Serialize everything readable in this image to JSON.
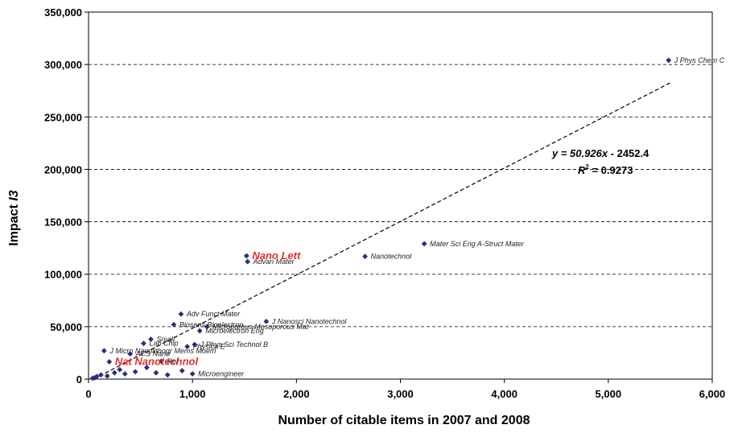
{
  "chart_data": {
    "type": "scatter",
    "xlabel": "Number of citable items in 2007 and 2008",
    "ylabel_prefix": "Impact ",
    "ylabel_var": "I3",
    "xlim": [
      0,
      6000
    ],
    "ylim": [
      0,
      350000
    ],
    "x_ticks": [
      "0",
      "1,000",
      "2,000",
      "3,000",
      "4,000",
      "5,000",
      "6,000"
    ],
    "y_ticks": [
      "0",
      "50,000",
      "100,000",
      "150,000",
      "200,000",
      "250,000",
      "300,000",
      "350,000"
    ],
    "grid": "horizontal dashed",
    "marker_color": "#2b2f7a",
    "highlight_color": "#e03030",
    "trendline": {
      "slope": 50.926,
      "intercept": -2452.4,
      "x_range": [
        50,
        5600
      ]
    },
    "equation": {
      "y_part": "y = 50.926",
      "x_part": "x",
      "rest": " - 2452.4",
      "r2_prefix": "R",
      "r2_sup": "2",
      "r2_rest": " = 0.9273"
    },
    "points": [
      {
        "x": 5580,
        "y": 304000,
        "label": "J Phys Chem C",
        "highlight": false
      },
      {
        "x": 3230,
        "y": 129000,
        "label": "Mater Sci Eng A-Struct Mater",
        "highlight": false
      },
      {
        "x": 2660,
        "y": 117000,
        "label": "Nanotechnol",
        "highlight": false
      },
      {
        "x": 1520,
        "y": 117500,
        "label": "Nano Lett",
        "highlight": true
      },
      {
        "x": 1530,
        "y": 112000,
        "label": "Advan Mater",
        "highlight": false
      },
      {
        "x": 890,
        "y": 62000,
        "label": "Adv Funct Mater",
        "highlight": false
      },
      {
        "x": 1710,
        "y": 55000,
        "label": "J Nanosci Nanotechnol",
        "highlight": false
      },
      {
        "x": 820,
        "y": 52000,
        "label": "Biosens Bioelectron",
        "highlight": false
      },
      {
        "x": 1140,
        "y": 50000,
        "label": "Microporous Mesoporous Mat",
        "highlight": false
      },
      {
        "x": 1070,
        "y": 46000,
        "label": "Microelectron Eng",
        "highlight": false
      },
      {
        "x": 600,
        "y": 38000,
        "label": "Small",
        "highlight": false
      },
      {
        "x": 530,
        "y": 34000,
        "label": "Lab Chip",
        "highlight": false
      },
      {
        "x": 1020,
        "y": 33000,
        "label": "J Phys Sci Technol B",
        "highlight": false
      },
      {
        "x": 950,
        "y": 31000,
        "label": "Physica E",
        "highlight": false
      },
      {
        "x": 150,
        "y": 27000,
        "label": "J Micro Nanolithogr Mems Moem",
        "highlight": false
      },
      {
        "x": 400,
        "y": 24000,
        "label": "ACS Nano",
        "highlight": false
      },
      {
        "x": 200,
        "y": 16500,
        "label": "Nat Nanotechnol",
        "highlight": true
      },
      {
        "x": 700,
        "y": 17000,
        "label": "Rel",
        "highlight": false
      },
      {
        "x": 560,
        "y": 11000,
        "label": "",
        "highlight": false
      },
      {
        "x": 300,
        "y": 9000,
        "label": "",
        "highlight": false
      },
      {
        "x": 250,
        "y": 6000,
        "label": "",
        "highlight": false
      },
      {
        "x": 120,
        "y": 4000,
        "label": "",
        "highlight": false
      },
      {
        "x": 80,
        "y": 2500,
        "label": "",
        "highlight": false
      },
      {
        "x": 60,
        "y": 1200,
        "label": "",
        "highlight": false
      },
      {
        "x": 180,
        "y": 3000,
        "label": "",
        "highlight": false
      },
      {
        "x": 350,
        "y": 5000,
        "label": "",
        "highlight": false
      },
      {
        "x": 450,
        "y": 7000,
        "label": "",
        "highlight": false
      },
      {
        "x": 650,
        "y": 6000,
        "label": "",
        "highlight": false
      },
      {
        "x": 760,
        "y": 4000,
        "label": "",
        "highlight": false
      },
      {
        "x": 1000,
        "y": 5000,
        "label": "Microengineer",
        "highlight": false
      },
      {
        "x": 900,
        "y": 8000,
        "label": "",
        "highlight": false
      },
      {
        "x": 40,
        "y": 800,
        "label": "",
        "highlight": false
      }
    ]
  }
}
